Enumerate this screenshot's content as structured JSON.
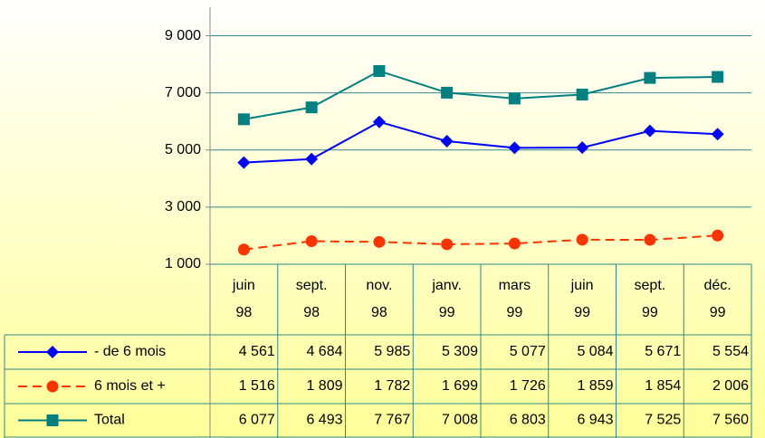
{
  "chart_data": {
    "type": "line",
    "categories": [
      "juin 98",
      "sept. 98",
      "nov. 98",
      "janv. 99",
      "mars 99",
      "juin 99",
      "sept. 99",
      "déc. 99"
    ],
    "series": [
      {
        "name": "- de 6 mois",
        "color": "#0000ff",
        "marker": "diamond",
        "line_style": "solid",
        "values": [
          4561,
          4684,
          5985,
          5309,
          5077,
          5084,
          5671,
          5554
        ],
        "value_labels": [
          "4 561",
          "4 684",
          "5 985",
          "5 309",
          "5 077",
          "5 084",
          "5 671",
          "5 554"
        ]
      },
      {
        "name": "6 mois et +",
        "color": "#ff3300",
        "marker": "circle",
        "line_style": "dashed",
        "values": [
          1516,
          1809,
          1782,
          1699,
          1726,
          1859,
          1854,
          2006
        ],
        "value_labels": [
          "1 516",
          "1 809",
          "1 782",
          "1 699",
          "1 726",
          "1 859",
          "1 854",
          "2 006"
        ]
      },
      {
        "name": "Total",
        "color": "#008080",
        "marker": "square",
        "line_style": "solid",
        "values": [
          6077,
          6493,
          7767,
          7008,
          6803,
          6943,
          7525,
          7560
        ],
        "value_labels": [
          "6 077",
          "6 493",
          "7 767",
          "7 008",
          "6 803",
          "6 943",
          "7 525",
          "7 560"
        ]
      }
    ],
    "ylim": [
      1000,
      10000
    ],
    "yticks": [
      {
        "value": 1000,
        "label": "1 000"
      },
      {
        "value": 3000,
        "label": "3 000"
      },
      {
        "value": 5000,
        "label": "5 000"
      },
      {
        "value": 7000,
        "label": "7 000"
      },
      {
        "value": 9000,
        "label": "9 000"
      }
    ],
    "grid": true,
    "data_table": true
  }
}
